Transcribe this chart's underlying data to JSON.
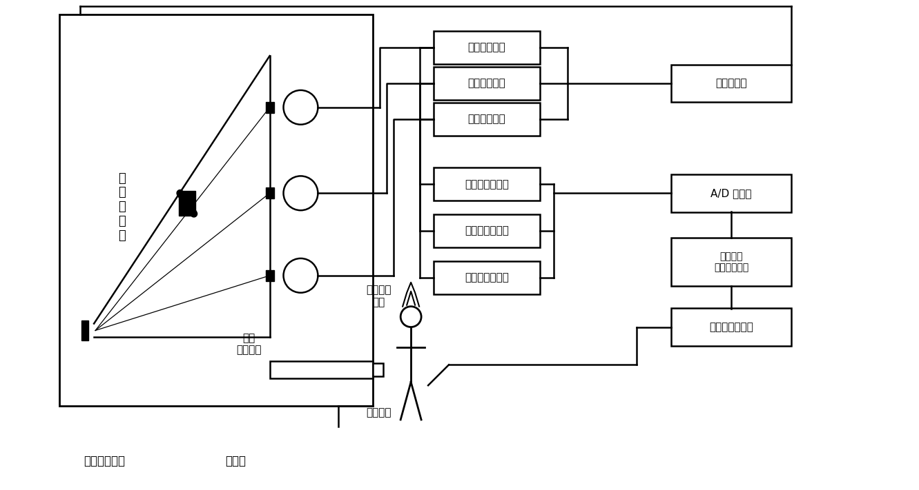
{
  "attenuator_labels": [
    "アッテネータ",
    "アッテネータ",
    "アッテネータ"
  ],
  "integrator_labels": [
    "インテグレータ",
    "インテグレータ",
    "インテグレータ"
  ],
  "right_labels": [
    "負高圧電源",
    "A/D 変換器",
    "マイクロ\nコンピュータ",
    "インタフェイス"
  ],
  "label_ondo": "温\n度\nセ\nン\nサ",
  "label_deguchi": "出口\nスリット",
  "label_plasma": "プラズマ\n発光",
  "label_bunseki": "分析試料",
  "label_concave": "凹面回析格子",
  "label_bunkouki": "分光器"
}
